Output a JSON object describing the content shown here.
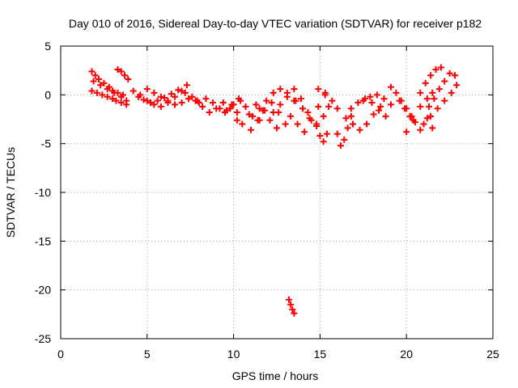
{
  "chart_data": {
    "type": "scatter",
    "title": "Day 010 of 2016, Sidereal Day-to-day VTEC variation (SDTVAR) for receiver p182",
    "xlabel": "GPS time / hours",
    "ylabel": "SDTVAR / TECUs",
    "xlim": [
      0,
      25
    ],
    "ylim": [
      -25,
      5
    ],
    "xticks": [
      0,
      5,
      10,
      15,
      20,
      25
    ],
    "yticks": [
      5,
      0,
      -5,
      -10,
      -15,
      -20,
      -25
    ],
    "grid": true,
    "marker": "plus",
    "color": "#ff0000",
    "series": [
      {
        "name": "SDTVAR",
        "x": [
          1.8,
          2.0,
          2.2,
          2.5,
          2.8,
          3.0,
          3.3,
          3.6,
          1.8,
          2.1,
          2.4,
          2.7,
          3.0,
          3.2,
          3.5,
          3.8,
          1.9,
          2.3,
          2.7,
          3.1,
          3.5,
          3.8,
          3.3,
          3.5,
          3.7,
          3.9,
          4.2,
          4.6,
          5.0,
          5.4,
          5.8,
          6.2,
          6.6,
          7.0,
          7.3,
          4.5,
          4.8,
          5.2,
          5.6,
          6.0,
          6.4,
          6.8,
          7.2,
          7.6,
          7.9,
          5.0,
          5.4,
          5.8,
          6.2,
          6.6,
          7.0,
          7.4,
          7.8,
          8.2,
          8.6,
          9.0,
          9.4,
          9.8,
          10.2,
          8.0,
          8.4,
          8.8,
          9.2,
          9.6,
          10.0,
          10.4,
          9.5,
          9.9,
          10.3,
          10.7,
          11.1,
          11.5,
          10.2,
          10.5,
          10.9,
          11.3,
          11.7,
          12.1,
          12.5,
          11.0,
          11.4,
          11.8,
          12.2,
          12.6,
          13.0,
          11.5,
          11.9,
          12.3,
          12.7,
          13.1,
          13.5,
          12.3,
          12.7,
          13.1,
          13.5,
          13.9,
          14.3,
          13.3,
          13.7,
          14.1,
          14.5,
          14.9,
          15.3,
          13.6,
          14.0,
          14.4,
          14.8,
          15.2,
          15.5,
          14.8,
          15.0,
          15.2,
          15.4,
          14.9,
          15.3,
          15.7,
          16.0,
          16.0,
          16.2,
          16.4,
          16.6,
          16.8,
          16.5,
          16.9,
          17.3,
          17.7,
          18.1,
          18.5,
          16.8,
          17.2,
          17.6,
          18.0,
          18.4,
          18.8,
          17.5,
          17.9,
          18.3,
          18.7,
          19.1,
          19.1,
          19.4,
          19.7,
          20.0,
          20.3,
          19.6,
          19.9,
          20.2,
          20.5,
          20.8,
          20.0,
          20.4,
          20.8,
          21.2,
          21.5,
          20.8,
          21.1,
          21.4,
          21.7,
          22.0,
          21.3,
          21.6,
          21.9,
          22.2,
          22.5,
          22.8,
          21.0,
          21.4,
          21.8,
          22.2,
          22.6,
          22.9,
          21.2,
          21.5,
          13.2,
          13.3,
          13.4,
          13.5
        ],
        "y": [
          2.4,
          2.0,
          1.6,
          1.2,
          0.8,
          0.4,
          0.2,
          0.0,
          0.4,
          0.2,
          0.0,
          -0.2,
          -0.4,
          -0.6,
          -0.8,
          -1.0,
          1.4,
          1.0,
          0.6,
          0.2,
          -0.2,
          -0.6,
          2.6,
          2.4,
          2.0,
          1.6,
          0.4,
          0.0,
          -0.6,
          -1.0,
          -1.2,
          -0.8,
          -0.2,
          0.4,
          1.0,
          -0.2,
          -0.5,
          -0.8,
          -0.6,
          -0.3,
          0.1,
          0.5,
          0.2,
          -0.2,
          -0.6,
          0.6,
          0.2,
          -0.2,
          -0.6,
          -1.0,
          -0.8,
          -0.4,
          -0.6,
          -1.2,
          -1.8,
          -1.4,
          -0.8,
          -1.4,
          -1.8,
          -0.8,
          -0.4,
          -0.8,
          -1.4,
          -1.6,
          -1.0,
          -0.6,
          -1.8,
          -1.0,
          -0.4,
          -1.2,
          -2.2,
          -2.6,
          -2.6,
          -3.0,
          -2.0,
          -1.0,
          -1.6,
          -2.6,
          -3.4,
          -3.6,
          -2.6,
          -1.6,
          -0.8,
          -1.8,
          -3.0,
          -1.4,
          -0.6,
          0.2,
          0.6,
          0.2,
          -0.6,
          -1.8,
          -1.0,
          -0.2,
          0.6,
          -0.4,
          -1.8,
          -2.2,
          -3.0,
          -3.8,
          -2.6,
          -1.2,
          0.0,
          -0.6,
          -1.4,
          -2.4,
          -3.0,
          -2.2,
          -1.2,
          -3.2,
          -4.2,
          -4.8,
          -4.0,
          0.6,
          0.2,
          -0.6,
          -1.4,
          -4.0,
          -5.2,
          -4.6,
          -3.4,
          -2.2,
          -2.4,
          -3.0,
          -3.6,
          -3.0,
          -2.0,
          -1.2,
          -1.4,
          -0.8,
          -0.4,
          -0.8,
          -1.6,
          -2.2,
          -0.6,
          -0.2,
          0.0,
          -0.4,
          -1.0,
          0.8,
          0.2,
          -0.6,
          -1.4,
          -2.2,
          -0.6,
          -1.4,
          -2.2,
          -2.8,
          -3.6,
          -3.8,
          -2.6,
          -1.2,
          -0.4,
          0.2,
          0.2,
          1.2,
          2.0,
          2.6,
          2.8,
          -1.2,
          -0.4,
          0.6,
          1.4,
          2.2,
          2.0,
          -3.0,
          -2.2,
          -1.4,
          -0.6,
          0.2,
          1.0,
          -2.4,
          -3.4,
          -21.0,
          -21.5,
          -22.0,
          -22.4
        ]
      }
    ]
  }
}
